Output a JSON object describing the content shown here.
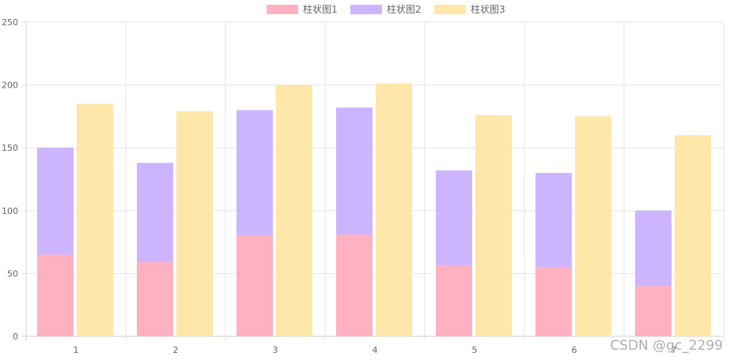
{
  "chart_data": {
    "type": "bar",
    "categories": [
      "1",
      "2",
      "3",
      "4",
      "5",
      "6",
      "7"
    ],
    "stacked_pairs": true,
    "series": [
      {
        "name": "柱状图1",
        "stack": "a",
        "values": [
          65,
          59,
          80,
          81,
          56,
          55,
          40
        ],
        "color": "#ffb1c1"
      },
      {
        "name": "柱状图2",
        "stack": "a",
        "values": [
          85,
          79,
          100,
          101,
          76,
          75,
          60
        ],
        "color": "#cdb4ff"
      },
      {
        "name": "柱状图3",
        "stack": "b",
        "values": [
          185,
          179,
          200,
          201,
          176,
          175,
          160
        ],
        "color": "#ffe6a9"
      }
    ],
    "ylim": [
      0,
      250
    ],
    "yticks": [
      "0",
      "50",
      "100",
      "150",
      "200",
      "250"
    ],
    "grid": true,
    "legend_position": "top-center"
  },
  "watermark": "CSDN @gc_2299"
}
